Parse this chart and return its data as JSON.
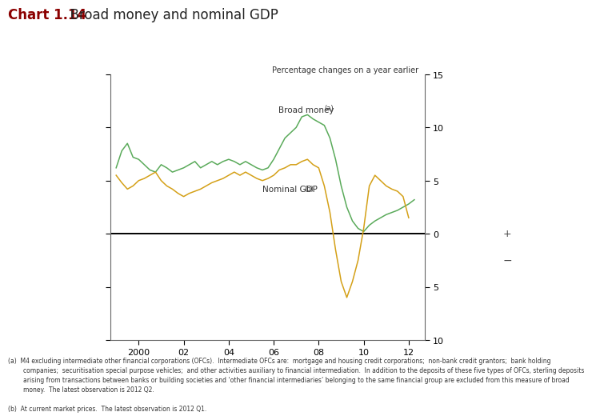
{
  "title_chart": "Chart 1.14",
  "title_main": "  Broad money and nominal GDP",
  "title_color": "#8B0000",
  "subtitle": "Percentage changes on a year earlier",
  "ylabel_plus": "+",
  "ylabel_minus": "−",
  "ylim": [
    -10,
    15
  ],
  "yticks": [
    -10,
    -5,
    0,
    5,
    10,
    15
  ],
  "xtick_years": [
    2000,
    2002,
    2004,
    2006,
    2008,
    2010,
    2012
  ],
  "xtick_labels": [
    "2000",
    "02",
    "04",
    "06",
    "08",
    "10",
    "12"
  ],
  "broad_money_color": "#5aaa5a",
  "nominal_gdp_color": "#d4a017",
  "zero_line_color": "#000000",
  "background_color": "#ffffff",
  "footnote_a": "(a)  M4 excluding intermediate other financial corporations (OFCs).  Intermediate OFCs are:  mortgage and housing credit corporations;  non-bank credit grantors;  bank holding\n        companies;  securitisation special purpose vehicles;  and other activities auxiliary to financial intermediation.  In addition to the deposits of these five types of OFCs, sterling deposits\n        arising from transactions between banks or building societies and ‘other financial intermediaries’ belonging to the same financial group are excluded from this measure of broad\n        money.  The latest observation is 2012 Q2.",
  "footnote_b": "(b)  At current market prices.  The latest observation is 2012 Q1.",
  "broad_money_x": [
    1999.0,
    1999.25,
    1999.5,
    1999.75,
    2000.0,
    2000.25,
    2000.5,
    2000.75,
    2001.0,
    2001.25,
    2001.5,
    2001.75,
    2002.0,
    2002.25,
    2002.5,
    2002.75,
    2003.0,
    2003.25,
    2003.5,
    2003.75,
    2004.0,
    2004.25,
    2004.5,
    2004.75,
    2005.0,
    2005.25,
    2005.5,
    2005.75,
    2006.0,
    2006.25,
    2006.5,
    2006.75,
    2007.0,
    2007.25,
    2007.5,
    2007.75,
    2008.0,
    2008.25,
    2008.5,
    2008.75,
    2009.0,
    2009.25,
    2009.5,
    2009.75,
    2010.0,
    2010.25,
    2010.5,
    2010.75,
    2011.0,
    2011.25,
    2011.5,
    2011.75,
    2012.0,
    2012.25
  ],
  "broad_money_y": [
    6.2,
    7.8,
    8.5,
    7.2,
    7.0,
    6.5,
    6.0,
    5.8,
    6.5,
    6.2,
    5.8,
    6.0,
    6.2,
    6.5,
    6.8,
    6.2,
    6.5,
    6.8,
    6.5,
    6.8,
    7.0,
    6.8,
    6.5,
    6.8,
    6.5,
    6.2,
    6.0,
    6.2,
    7.0,
    8.0,
    9.0,
    9.5,
    10.0,
    11.0,
    11.2,
    10.8,
    10.5,
    10.2,
    9.0,
    7.0,
    4.5,
    2.5,
    1.2,
    0.5,
    0.2,
    0.8,
    1.2,
    1.5,
    1.8,
    2.0,
    2.2,
    2.5,
    2.8,
    3.2
  ],
  "nominal_gdp_x": [
    1999.0,
    1999.25,
    1999.5,
    1999.75,
    2000.0,
    2000.25,
    2000.5,
    2000.75,
    2001.0,
    2001.25,
    2001.5,
    2001.75,
    2002.0,
    2002.25,
    2002.5,
    2002.75,
    2003.0,
    2003.25,
    2003.5,
    2003.75,
    2004.0,
    2004.25,
    2004.5,
    2004.75,
    2005.0,
    2005.25,
    2005.5,
    2005.75,
    2006.0,
    2006.25,
    2006.5,
    2006.75,
    2007.0,
    2007.25,
    2007.5,
    2007.75,
    2008.0,
    2008.25,
    2008.5,
    2008.75,
    2009.0,
    2009.25,
    2009.5,
    2009.75,
    2010.0,
    2010.25,
    2010.5,
    2010.75,
    2011.0,
    2011.25,
    2011.5,
    2011.75,
    2012.0
  ],
  "nominal_gdp_y": [
    5.5,
    4.8,
    4.2,
    4.5,
    5.0,
    5.2,
    5.5,
    5.8,
    5.0,
    4.5,
    4.2,
    3.8,
    3.5,
    3.8,
    4.0,
    4.2,
    4.5,
    4.8,
    5.0,
    5.2,
    5.5,
    5.8,
    5.5,
    5.8,
    5.5,
    5.2,
    5.0,
    5.2,
    5.5,
    6.0,
    6.2,
    6.5,
    6.5,
    6.8,
    7.0,
    6.5,
    6.2,
    4.5,
    2.0,
    -1.5,
    -4.5,
    -6.0,
    -4.5,
    -2.5,
    0.5,
    4.5,
    5.5,
    5.0,
    4.5,
    4.2,
    4.0,
    3.5,
    1.5
  ]
}
